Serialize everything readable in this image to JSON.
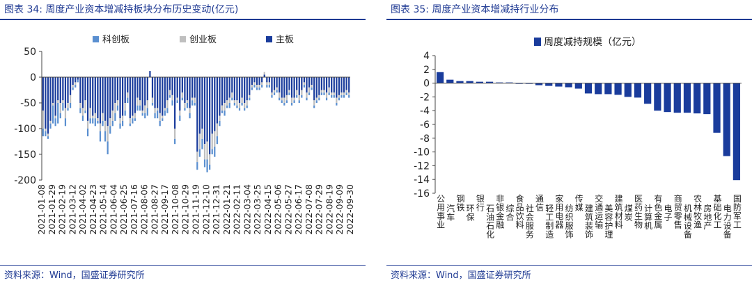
{
  "charts": [
    {
      "title": "图表 34:  周度产业资本增减持板块分布历史变动(亿元)",
      "source": "资料来源：Wind，国盛证券研究所"
    },
    {
      "title": "图表 35:  周度产业资本增减持行业分布",
      "source": "资料来源：Wind，国盛证券研究所"
    }
  ],
  "colors": {
    "main": "#1a3c9c",
    "kcb": "#5a8fd0",
    "cyb": "#bfbfbf",
    "accent": "#1f3a93"
  },
  "chart_data": [
    {
      "type": "bar",
      "stacked": true,
      "legend": [
        "科创板",
        "创业板",
        "主板"
      ],
      "legend_position": "top",
      "ylim": [
        -200,
        50
      ],
      "yticks": [
        50,
        0,
        -50,
        -100,
        -150,
        -200
      ],
      "xticks": [
        "2021-01-08",
        "2021-01-29",
        "2021-02-19",
        "2021-03-12",
        "2021-04-02",
        "2021-04-23",
        "2021-05-14",
        "2021-06-04",
        "2021-06-25",
        "2021-07-16",
        "2021-08-06",
        "2021-08-27",
        "2021-09-17",
        "2021-10-08",
        "2021-10-29",
        "2021-11-19",
        "2021-12-10",
        "2021-12-31",
        "2022-01-21",
        "2022-02-11",
        "2022-03-04",
        "2022-03-25",
        "2022-04-15",
        "2022-05-06",
        "2022-05-27",
        "2022-06-17",
        "2022-07-08",
        "2022-07-29",
        "2022-08-19",
        "2022-09-09",
        "2022-09-30"
      ],
      "xtick_labels": [
        "2021-01-08",
        "2021-01-29",
        "2021-02-19",
        "2021-03-12",
        "2021-04-02",
        "2021-04-23",
        "2021-05-14",
        "2021-06-04",
        "2021-06-25",
        "2021-07-16",
        "2021-08-06",
        "2021-08-27",
        "2021-09-17",
        "2021-10-08",
        "2021-10-29",
        "2021-11-19",
        "2021-12-10",
        "2021-12-31",
        "2022-01-21",
        "2022-02-11",
        "2022-03-04",
        "2022-03-25",
        "2022-04-15",
        "2022-05-06",
        "2022-05-27",
        "2022-06-17",
        "2022-07-08",
        "2022-07-29",
        "2022-08-19",
        "2022-09-09",
        "2022-09-30"
      ],
      "series": [
        {
          "name": "主板",
          "values": [
            -65,
            -100,
            -110,
            -85,
            -50,
            -75,
            -45,
            -50,
            -45,
            -60,
            -50,
            -35,
            -15,
            -10,
            -5,
            -50,
            -60,
            -45,
            -85,
            -60,
            -75,
            -70,
            -80,
            -90,
            -70,
            -85,
            -95,
            -80,
            -65,
            -50,
            -45,
            -80,
            -75,
            -50,
            -30,
            -80,
            -75,
            -70,
            -40,
            -45,
            -65,
            -55,
            -45,
            12,
            -40,
            -60,
            -60,
            -70,
            -75,
            -60,
            -45,
            -25,
            -35,
            -100,
            -40,
            -65,
            -30,
            -50,
            -45,
            -60,
            -40,
            -40,
            -145,
            -110,
            -100,
            -130,
            -125,
            -150,
            -110,
            -105,
            -90,
            -75,
            -55,
            -50,
            -45,
            -40,
            -30,
            -45,
            -45,
            -50,
            -40,
            -50,
            -45,
            -35,
            -15,
            -10,
            -15,
            -15,
            -10,
            5,
            -10,
            -10,
            -30,
            -25,
            -20,
            -30,
            -40,
            -40,
            -35,
            -25,
            -40,
            -40,
            -25,
            -35,
            -25,
            -10,
            -30,
            -20,
            -15,
            -45,
            -40,
            -35,
            -25,
            -25,
            -30,
            -20,
            -30,
            -30,
            -40,
            -35,
            -30,
            -30,
            -25,
            -30
          ],
          "note": "weekly 主板 values"
        },
        {
          "name": "创业板",
          "values": [
            -35,
            -5,
            -5,
            -5,
            -5,
            -5,
            -5,
            -20,
            -5,
            -20,
            -10,
            -15,
            -5,
            -5,
            0,
            -10,
            -15,
            -20,
            -15,
            -20,
            -5,
            -10,
            -5,
            -15,
            -15,
            -20,
            -30,
            -15,
            -20,
            -20,
            -10,
            -10,
            -10,
            -15,
            -10,
            -10,
            -5,
            -10,
            -15,
            -10,
            -5,
            -15,
            -15,
            0,
            -10,
            -10,
            -5,
            -15,
            -5,
            -5,
            -15,
            -10,
            -10,
            -20,
            -5,
            -10,
            -10,
            -10,
            -5,
            -10,
            -5,
            -10,
            -20,
            -30,
            -20,
            -30,
            -35,
            -20,
            -30,
            -30,
            -25,
            -10,
            -10,
            -15,
            -10,
            -10,
            -10,
            -5,
            -10,
            -10,
            -10,
            -10,
            -10,
            -5,
            -5,
            -5,
            -5,
            -5,
            -5,
            5,
            -5,
            -5,
            -5,
            -5,
            -5,
            -10,
            -5,
            -10,
            -10,
            -5,
            -10,
            -5,
            -10,
            -10,
            -10,
            -5,
            -10,
            -10,
            -5,
            -10,
            -5,
            -5,
            -5,
            -5,
            -10,
            -10,
            -5,
            -5,
            -10,
            -5,
            -5,
            -5,
            -5,
            -5
          ]
        },
        {
          "name": "科创板",
          "values": [
            -15,
            -10,
            -5,
            -10,
            -35,
            -15,
            -40,
            -10,
            -15,
            -15,
            -5,
            -10,
            -5,
            -5,
            -5,
            -10,
            -10,
            -5,
            -15,
            -10,
            -10,
            -15,
            -5,
            -20,
            -10,
            -20,
            -25,
            -15,
            -10,
            -15,
            -10,
            -10,
            -10,
            -10,
            -10,
            -5,
            -10,
            -5,
            -10,
            -10,
            -5,
            -10,
            -15,
            0,
            -5,
            -10,
            -15,
            -10,
            -5,
            -10,
            -10,
            -5,
            -10,
            -10,
            -5,
            -10,
            -5,
            -5,
            -10,
            -10,
            -10,
            -5,
            -15,
            -15,
            -20,
            -15,
            -25,
            -10,
            -10,
            -20,
            -15,
            -10,
            -5,
            -10,
            -5,
            -10,
            -5,
            -5,
            -5,
            -5,
            -5,
            -5,
            -5,
            -5,
            -5,
            -5,
            -5,
            -5,
            -5,
            0,
            -5,
            -5,
            -5,
            -5,
            -5,
            -5,
            -5,
            -5,
            -5,
            -5,
            -5,
            -5,
            -5,
            -5,
            -5,
            -5,
            -5,
            -5,
            -5,
            -5,
            -5,
            -5,
            -5,
            -5,
            -5,
            -5,
            -5,
            -5,
            -5,
            -5,
            -5,
            -5,
            -5,
            -5
          ]
        }
      ]
    },
    {
      "type": "bar",
      "legend": [
        "周度减持规模（亿元）"
      ],
      "legend_position": "top",
      "ylim": [
        -16,
        4
      ],
      "yticks": [
        4,
        2,
        0,
        -2,
        -4,
        -6,
        -8,
        -10,
        -12,
        -14,
        -16
      ],
      "categories": [
        "公用事业",
        "汽车",
        "钢铁",
        "环保",
        "银行",
        "石油石化",
        "非银金融",
        "综合",
        "食品饮料",
        "社会服务",
        "通信",
        "轻工制造",
        "家用电器",
        "纺织服饰",
        "传媒",
        "建筑装饰",
        "交通运输",
        "美容护理",
        "建筑材料",
        "煤炭",
        "医药生物",
        "计算机",
        "有色金属",
        "电子",
        "商贸零售",
        "机械设备",
        "农林牧渔",
        "房地产",
        "基础化工",
        "电力设备",
        "国防军工"
      ],
      "values": [
        1.6,
        0.5,
        0.3,
        0.3,
        0.2,
        0.2,
        0.1,
        0.1,
        0.0,
        0.0,
        -0.3,
        -0.4,
        -0.5,
        -0.6,
        -0.8,
        -1.5,
        -1.6,
        -1.6,
        -1.7,
        -2.0,
        -2.1,
        -3.0,
        -4.0,
        -4.2,
        -4.3,
        -4.3,
        -4.4,
        -4.5,
        -7.2,
        -10.6,
        -14.1
      ]
    }
  ]
}
